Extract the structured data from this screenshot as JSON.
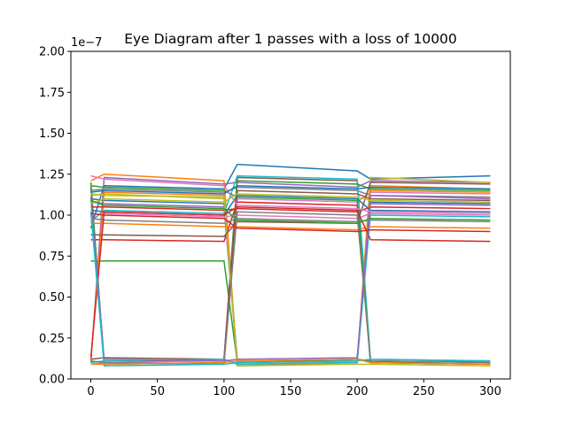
{
  "chart_data": {
    "type": "line",
    "title": "Eye Diagram after 1 passes with a loss of 10000",
    "xlabel": "",
    "ylabel": "",
    "y_offset_label": "1e−7",
    "xlim": [
      -15,
      315
    ],
    "ylim": [
      0.0,
      2.0
    ],
    "xticks": [
      0,
      50,
      100,
      150,
      200,
      250,
      300
    ],
    "xtick_labels": [
      "0",
      "50",
      "100",
      "150",
      "200",
      "250",
      "300"
    ],
    "yticks": [
      0.0,
      0.25,
      0.5,
      0.75,
      1.0,
      1.25,
      1.5,
      1.75,
      2.0
    ],
    "ytick_labels": [
      "0.00",
      "0.25",
      "0.50",
      "0.75",
      "1.00",
      "1.25",
      "1.50",
      "1.75",
      "2.00"
    ],
    "grid": false,
    "legend": "none",
    "colors": [
      "#1f77b4",
      "#ff7f0e",
      "#2ca02c",
      "#d62728",
      "#9467bd",
      "#8c564b",
      "#e377c2",
      "#7f7f7f",
      "#bcbd22",
      "#17becf"
    ],
    "x": [
      0,
      10,
      100,
      110,
      200,
      210,
      300
    ],
    "series": [
      {
        "values": [
          0.92,
          1.18,
          1.16,
          1.31,
          1.27,
          1.22,
          1.24
        ]
      },
      {
        "values": [
          1.21,
          1.25,
          1.21,
          0.08,
          0.1,
          1.15,
          1.14
        ]
      },
      {
        "values": [
          0.72,
          0.72,
          0.72,
          0.1,
          0.12,
          0.11,
          0.1
        ]
      },
      {
        "values": [
          0.85,
          0.85,
          0.84,
          1.08,
          1.06,
          0.1,
          0.09
        ]
      },
      {
        "values": [
          0.1,
          1.23,
          1.19,
          1.2,
          1.17,
          1.21,
          1.2
        ]
      },
      {
        "values": [
          1.17,
          0.1,
          0.12,
          1.23,
          1.21,
          0.1,
          0.11
        ]
      },
      {
        "values": [
          0.09,
          0.1,
          0.11,
          1.1,
          1.08,
          1.14,
          1.13
        ]
      },
      {
        "values": [
          1.15,
          1.16,
          1.14,
          1.17,
          1.15,
          1.12,
          1.11
        ]
      },
      {
        "values": [
          1.12,
          1.13,
          1.1,
          0.09,
          0.1,
          1.23,
          1.2
        ]
      },
      {
        "values": [
          0.96,
          1.03,
          1.01,
          1.24,
          1.22,
          0.12,
          0.11
        ]
      },
      {
        "values": [
          1.1,
          1.09,
          1.07,
          0.11,
          0.12,
          1.08,
          1.07
        ]
      },
      {
        "values": [
          0.11,
          1.14,
          1.12,
          0.09,
          0.1,
          1.18,
          1.16
        ]
      },
      {
        "values": [
          1.2,
          0.09,
          0.1,
          1.21,
          1.19,
          1.16,
          1.15
        ]
      },
      {
        "values": [
          1.05,
          1.05,
          1.03,
          1.04,
          1.02,
          1.05,
          1.04
        ]
      },
      {
        "values": [
          1.08,
          1.07,
          1.05,
          0.1,
          0.11,
          1.12,
          1.1
        ]
      },
      {
        "values": [
          0.12,
          0.13,
          0.12,
          1.15,
          1.13,
          1.1,
          1.09
        ]
      },
      {
        "values": [
          1.0,
          1.01,
          0.99,
          1.0,
          0.98,
          1.01,
          1.0
        ]
      },
      {
        "values": [
          0.98,
          0.97,
          0.95,
          0.98,
          0.96,
          0.97,
          0.96
        ]
      },
      {
        "values": [
          1.13,
          1.12,
          1.11,
          0.08,
          0.09,
          0.09,
          0.08
        ]
      },
      {
        "values": [
          0.1,
          0.11,
          0.12,
          0.09,
          0.1,
          1.0,
          0.99
        ]
      },
      {
        "values": [
          1.03,
          1.02,
          1.0,
          1.12,
          1.1,
          1.03,
          1.02
        ]
      },
      {
        "values": [
          0.95,
          0.95,
          0.93,
          0.93,
          0.91,
          0.93,
          0.92
        ]
      },
      {
        "values": [
          1.18,
          1.17,
          1.15,
          1.11,
          1.09,
          0.1,
          0.09
        ]
      },
      {
        "values": [
          0.13,
          1.02,
          1.0,
          1.05,
          1.03,
          0.85,
          0.84
        ]
      },
      {
        "values": [
          1.11,
          0.12,
          0.11,
          0.12,
          0.13,
          1.07,
          1.06
        ]
      },
      {
        "values": [
          0.88,
          0.88,
          0.87,
          0.96,
          0.95,
          1.2,
          1.19
        ]
      },
      {
        "values": [
          1.24,
          1.22,
          1.18,
          1.06,
          1.04,
          1.02,
          1.01
        ]
      },
      {
        "values": [
          0.11,
          0.1,
          0.09,
          1.02,
          1.0,
          0.11,
          0.1
        ]
      },
      {
        "values": [
          1.07,
          1.1,
          1.08,
          1.13,
          1.11,
          1.09,
          1.08
        ]
      },
      {
        "values": [
          1.02,
          0.08,
          0.09,
          0.1,
          0.11,
          0.12,
          0.11
        ]
      },
      {
        "values": [
          1.14,
          1.15,
          1.13,
          1.18,
          1.16,
          1.17,
          1.16
        ]
      },
      {
        "values": [
          0.09,
          0.09,
          0.1,
          0.11,
          0.12,
          0.1,
          0.09
        ]
      },
      {
        "values": [
          1.09,
          1.06,
          1.04,
          0.97,
          0.95,
          0.98,
          0.97
        ]
      },
      {
        "values": [
          1.01,
          1.0,
          0.98,
          0.92,
          0.9,
          0.91,
          0.9
        ]
      }
    ]
  }
}
